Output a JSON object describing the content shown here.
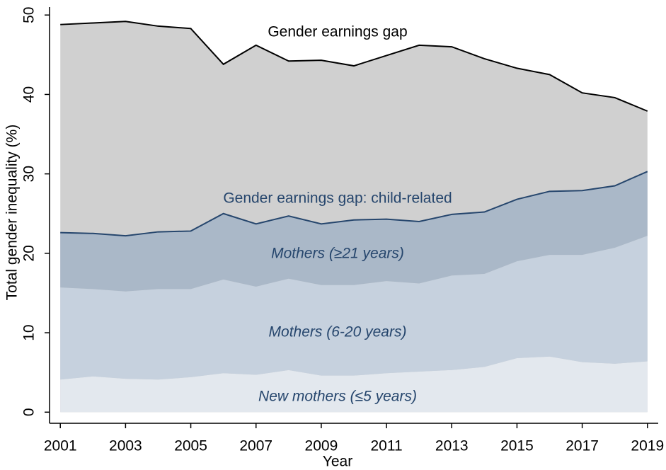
{
  "chart_data": {
    "type": "area",
    "y_label": "Total gender inequality (%)",
    "x_label": "Year",
    "annotation": "Gender earnings gap: child-related",
    "x": [
      2001,
      2002,
      2003,
      2004,
      2005,
      2006,
      2007,
      2008,
      2009,
      2010,
      2011,
      2012,
      2013,
      2014,
      2015,
      2016,
      2017,
      2018,
      2019
    ],
    "series": [
      {
        "name": "Gender earnings gap",
        "color": "#d0d0d0",
        "line_color": "#000000",
        "stacked": false,
        "values": [
          48.8,
          49.0,
          49.2,
          48.6,
          48.3,
          43.8,
          46.2,
          44.2,
          44.3,
          43.6,
          44.9,
          46.2,
          46.0,
          44.5,
          43.3,
          42.5,
          40.2,
          39.6,
          37.9
        ]
      },
      {
        "name": "New mothers (≤5 years)",
        "color": "#e3e8ee",
        "stacked": true,
        "values": [
          4.1,
          4.5,
          4.2,
          4.1,
          4.4,
          4.9,
          4.7,
          5.3,
          4.6,
          4.6,
          4.9,
          5.1,
          5.3,
          5.7,
          6.8,
          7.0,
          6.3,
          6.1,
          6.4
        ]
      },
      {
        "name": "Mothers (6-20 years)",
        "color": "#c6d1de",
        "stacked": true,
        "values": [
          11.6,
          11.0,
          11.0,
          11.4,
          11.1,
          11.8,
          11.1,
          11.5,
          11.4,
          11.4,
          11.6,
          11.1,
          11.9,
          11.7,
          12.2,
          12.8,
          13.5,
          14.6,
          15.8
        ]
      },
      {
        "name": "Mothers (≥21 years)",
        "color": "#aab8c8",
        "line_color": "#26466d",
        "stacked": true,
        "values": [
          6.9,
          7.0,
          7.0,
          7.2,
          7.3,
          8.3,
          7.9,
          7.9,
          7.7,
          8.2,
          7.8,
          7.8,
          7.7,
          7.8,
          7.8,
          8.0,
          8.1,
          7.8,
          8.1
        ]
      }
    ],
    "xlim": [
      2000.67,
      2019.33
    ],
    "ylim": [
      -1.4,
      51
    ],
    "xticks": [
      2001,
      2003,
      2005,
      2007,
      2009,
      2011,
      2013,
      2015,
      2017,
      2019
    ],
    "yticks": [
      0,
      10,
      20,
      30,
      40,
      50
    ]
  }
}
